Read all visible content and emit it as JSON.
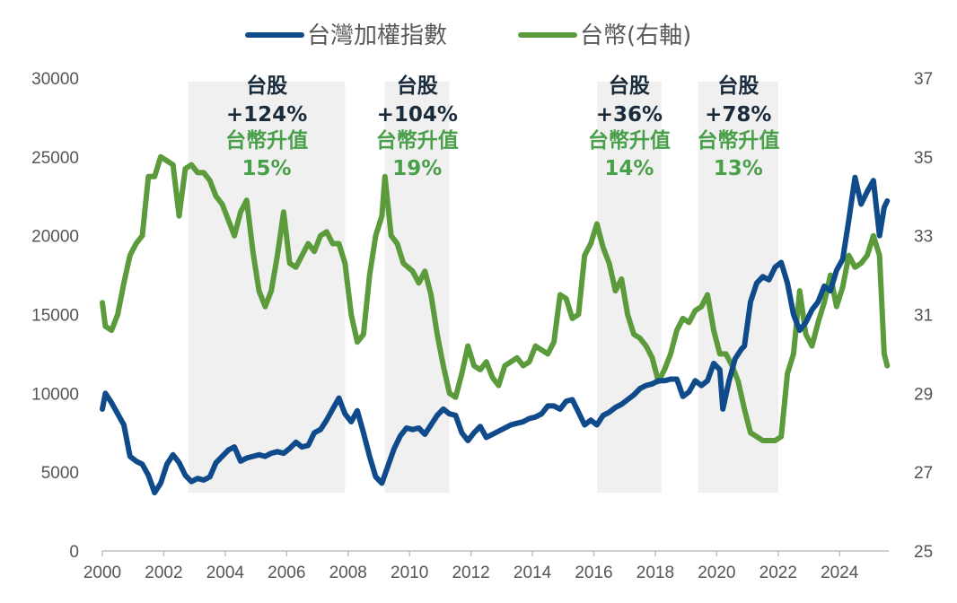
{
  "chart_data": {
    "type": "line",
    "title": "",
    "legend": {
      "placement": "top-center",
      "items": [
        {
          "label": "台灣加權指數",
          "color": "#0f4a8a"
        },
        {
          "label": "台幣(右軸)",
          "color": "#5c9b3c"
        }
      ]
    },
    "x_axis": {
      "ticks": [
        "2000",
        "2002",
        "2004",
        "2006",
        "2008",
        "2010",
        "2012",
        "2014",
        "2016",
        "2018",
        "2020",
        "2022",
        "2024"
      ],
      "range": [
        2000,
        2025.6
      ]
    },
    "y_left": {
      "ticks": [
        "0",
        "5000",
        "10000",
        "15000",
        "20000",
        "25000",
        "30000"
      ],
      "range": [
        0,
        30000
      ]
    },
    "y_right": {
      "ticks": [
        "25",
        "27",
        "29",
        "31",
        "33",
        "35",
        "37"
      ],
      "range": [
        25,
        37
      ]
    },
    "grid": false,
    "shaded_periods": [
      {
        "start": 2002.8,
        "end": 2007.9,
        "label": "台股",
        "stock": "+124%",
        "fx_label": "台幣升值",
        "fx": "15%"
      },
      {
        "start": 2009.2,
        "end": 2011.3,
        "label": "台股",
        "stock": "+104%",
        "fx_label": "台幣升值",
        "fx": "19%"
      },
      {
        "start": 2016.1,
        "end": 2018.2,
        "label": "台股",
        "stock": "+36%",
        "fx_label": "台幣升值",
        "fx": "14%"
      },
      {
        "start": 2019.4,
        "end": 2022.0,
        "label": "台股",
        "stock": "+78%",
        "fx_label": "台幣升值",
        "fx": "13%"
      }
    ],
    "series": [
      {
        "name": "台灣加權指數",
        "axis": "left",
        "color": "#0f4a8a",
        "points": [
          [
            2000.0,
            9000
          ],
          [
            2000.1,
            10000
          ],
          [
            2000.3,
            9400
          ],
          [
            2000.5,
            8700
          ],
          [
            2000.7,
            8000
          ],
          [
            2000.9,
            6000
          ],
          [
            2001.1,
            5700
          ],
          [
            2001.3,
            5500
          ],
          [
            2001.5,
            4800
          ],
          [
            2001.7,
            3700
          ],
          [
            2001.9,
            4300
          ],
          [
            2002.1,
            5500
          ],
          [
            2002.3,
            6100
          ],
          [
            2002.5,
            5600
          ],
          [
            2002.7,
            4800
          ],
          [
            2002.9,
            4400
          ],
          [
            2003.1,
            4600
          ],
          [
            2003.3,
            4500
          ],
          [
            2003.5,
            4700
          ],
          [
            2003.7,
            5600
          ],
          [
            2003.9,
            6000
          ],
          [
            2004.1,
            6400
          ],
          [
            2004.3,
            6600
          ],
          [
            2004.5,
            5700
          ],
          [
            2004.7,
            5900
          ],
          [
            2004.9,
            6000
          ],
          [
            2005.1,
            6100
          ],
          [
            2005.3,
            6000
          ],
          [
            2005.5,
            6200
          ],
          [
            2005.7,
            6300
          ],
          [
            2005.9,
            6200
          ],
          [
            2006.1,
            6500
          ],
          [
            2006.3,
            6900
          ],
          [
            2006.5,
            6600
          ],
          [
            2006.7,
            6700
          ],
          [
            2006.9,
            7500
          ],
          [
            2007.1,
            7700
          ],
          [
            2007.3,
            8300
          ],
          [
            2007.5,
            9000
          ],
          [
            2007.7,
            9700
          ],
          [
            2007.9,
            8700
          ],
          [
            2008.1,
            8200
          ],
          [
            2008.3,
            8900
          ],
          [
            2008.5,
            7500
          ],
          [
            2008.7,
            6000
          ],
          [
            2008.9,
            4700
          ],
          [
            2009.1,
            4300
          ],
          [
            2009.3,
            5400
          ],
          [
            2009.5,
            6500
          ],
          [
            2009.7,
            7300
          ],
          [
            2009.9,
            7800
          ],
          [
            2010.1,
            7700
          ],
          [
            2010.3,
            7800
          ],
          [
            2010.5,
            7400
          ],
          [
            2010.7,
            8000
          ],
          [
            2010.9,
            8600
          ],
          [
            2011.1,
            9000
          ],
          [
            2011.3,
            8700
          ],
          [
            2011.5,
            8600
          ],
          [
            2011.7,
            7500
          ],
          [
            2011.9,
            7000
          ],
          [
            2012.1,
            7500
          ],
          [
            2012.3,
            7900
          ],
          [
            2012.5,
            7200
          ],
          [
            2012.7,
            7400
          ],
          [
            2012.9,
            7600
          ],
          [
            2013.1,
            7800
          ],
          [
            2013.3,
            8000
          ],
          [
            2013.5,
            8100
          ],
          [
            2013.7,
            8200
          ],
          [
            2013.9,
            8400
          ],
          [
            2014.1,
            8500
          ],
          [
            2014.3,
            8700
          ],
          [
            2014.5,
            9200
          ],
          [
            2014.7,
            9200
          ],
          [
            2014.9,
            9000
          ],
          [
            2015.1,
            9500
          ],
          [
            2015.3,
            9600
          ],
          [
            2015.5,
            8800
          ],
          [
            2015.7,
            8000
          ],
          [
            2015.9,
            8300
          ],
          [
            2016.1,
            8000
          ],
          [
            2016.3,
            8600
          ],
          [
            2016.5,
            8800
          ],
          [
            2016.7,
            9100
          ],
          [
            2016.9,
            9300
          ],
          [
            2017.1,
            9600
          ],
          [
            2017.3,
            9900
          ],
          [
            2017.5,
            10300
          ],
          [
            2017.7,
            10500
          ],
          [
            2017.9,
            10600
          ],
          [
            2018.1,
            10800
          ],
          [
            2018.3,
            10800
          ],
          [
            2018.5,
            10900
          ],
          [
            2018.7,
            10900
          ],
          [
            2018.9,
            9800
          ],
          [
            2019.1,
            10100
          ],
          [
            2019.3,
            10800
          ],
          [
            2019.5,
            10500
          ],
          [
            2019.7,
            10800
          ],
          [
            2019.9,
            11900
          ],
          [
            2020.1,
            11500
          ],
          [
            2020.2,
            9000
          ],
          [
            2020.4,
            10800
          ],
          [
            2020.6,
            12200
          ],
          [
            2020.8,
            12800
          ],
          [
            2020.9,
            13000
          ],
          [
            2021.1,
            15800
          ],
          [
            2021.3,
            17000
          ],
          [
            2021.5,
            17400
          ],
          [
            2021.7,
            17200
          ],
          [
            2021.9,
            18000
          ],
          [
            2022.1,
            18300
          ],
          [
            2022.3,
            17000
          ],
          [
            2022.5,
            15000
          ],
          [
            2022.7,
            14000
          ],
          [
            2022.9,
            14500
          ],
          [
            2023.1,
            15300
          ],
          [
            2023.3,
            15800
          ],
          [
            2023.5,
            16800
          ],
          [
            2023.7,
            16500
          ],
          [
            2023.9,
            17800
          ],
          [
            2024.1,
            18500
          ],
          [
            2024.3,
            21000
          ],
          [
            2024.5,
            23700
          ],
          [
            2024.7,
            22000
          ],
          [
            2024.9,
            22800
          ],
          [
            2025.1,
            23500
          ],
          [
            2025.3,
            20000
          ],
          [
            2025.45,
            21800
          ],
          [
            2025.55,
            22200
          ]
        ]
      },
      {
        "name": "台幣(右軸)",
        "axis": "right",
        "color": "#5c9b3c",
        "points": [
          [
            2000.0,
            31.3
          ],
          [
            2000.1,
            30.7
          ],
          [
            2000.3,
            30.6
          ],
          [
            2000.5,
            31.0
          ],
          [
            2000.7,
            31.8
          ],
          [
            2000.9,
            32.5
          ],
          [
            2001.1,
            32.8
          ],
          [
            2001.3,
            33.0
          ],
          [
            2001.5,
            34.5
          ],
          [
            2001.7,
            34.5
          ],
          [
            2001.9,
            35.0
          ],
          [
            2002.1,
            34.9
          ],
          [
            2002.3,
            34.8
          ],
          [
            2002.5,
            33.5
          ],
          [
            2002.7,
            34.7
          ],
          [
            2002.9,
            34.8
          ],
          [
            2003.1,
            34.6
          ],
          [
            2003.3,
            34.6
          ],
          [
            2003.5,
            34.4
          ],
          [
            2003.7,
            34.0
          ],
          [
            2003.9,
            33.8
          ],
          [
            2004.1,
            33.4
          ],
          [
            2004.3,
            33.0
          ],
          [
            2004.5,
            33.6
          ],
          [
            2004.7,
            33.9
          ],
          [
            2004.9,
            32.6
          ],
          [
            2005.1,
            31.6
          ],
          [
            2005.3,
            31.2
          ],
          [
            2005.5,
            31.6
          ],
          [
            2005.7,
            32.5
          ],
          [
            2005.9,
            33.6
          ],
          [
            2006.1,
            32.3
          ],
          [
            2006.3,
            32.2
          ],
          [
            2006.5,
            32.5
          ],
          [
            2006.7,
            32.8
          ],
          [
            2006.9,
            32.6
          ],
          [
            2007.1,
            33.0
          ],
          [
            2007.3,
            33.1
          ],
          [
            2007.5,
            32.8
          ],
          [
            2007.7,
            32.8
          ],
          [
            2007.9,
            32.3
          ],
          [
            2008.1,
            31.0
          ],
          [
            2008.3,
            30.3
          ],
          [
            2008.5,
            30.5
          ],
          [
            2008.7,
            32.0
          ],
          [
            2008.9,
            33.0
          ],
          [
            2009.1,
            33.5
          ],
          [
            2009.2,
            34.5
          ],
          [
            2009.4,
            33.0
          ],
          [
            2009.6,
            32.8
          ],
          [
            2009.8,
            32.3
          ],
          [
            2010.1,
            32.1
          ],
          [
            2010.3,
            31.8
          ],
          [
            2010.5,
            32.1
          ],
          [
            2010.7,
            31.5
          ],
          [
            2010.9,
            30.5
          ],
          [
            2011.1,
            29.7
          ],
          [
            2011.3,
            29.0
          ],
          [
            2011.5,
            28.9
          ],
          [
            2011.7,
            29.5
          ],
          [
            2011.9,
            30.2
          ],
          [
            2012.1,
            29.7
          ],
          [
            2012.3,
            29.6
          ],
          [
            2012.5,
            29.8
          ],
          [
            2012.7,
            29.4
          ],
          [
            2012.9,
            29.2
          ],
          [
            2013.1,
            29.7
          ],
          [
            2013.3,
            29.8
          ],
          [
            2013.5,
            29.9
          ],
          [
            2013.7,
            29.7
          ],
          [
            2013.9,
            29.8
          ],
          [
            2014.1,
            30.2
          ],
          [
            2014.3,
            30.1
          ],
          [
            2014.5,
            30.0
          ],
          [
            2014.7,
            30.3
          ],
          [
            2014.9,
            31.5
          ],
          [
            2015.1,
            31.4
          ],
          [
            2015.3,
            30.9
          ],
          [
            2015.5,
            31.0
          ],
          [
            2015.7,
            32.5
          ],
          [
            2015.9,
            32.8
          ],
          [
            2016.1,
            33.3
          ],
          [
            2016.3,
            32.7
          ],
          [
            2016.5,
            32.3
          ],
          [
            2016.7,
            31.6
          ],
          [
            2016.9,
            31.9
          ],
          [
            2017.1,
            31.0
          ],
          [
            2017.3,
            30.5
          ],
          [
            2017.5,
            30.4
          ],
          [
            2017.7,
            30.2
          ],
          [
            2017.9,
            29.9
          ],
          [
            2018.1,
            29.3
          ],
          [
            2018.3,
            29.6
          ],
          [
            2018.5,
            30.0
          ],
          [
            2018.7,
            30.6
          ],
          [
            2018.9,
            30.9
          ],
          [
            2019.1,
            30.8
          ],
          [
            2019.3,
            31.1
          ],
          [
            2019.5,
            31.2
          ],
          [
            2019.7,
            31.5
          ],
          [
            2019.9,
            30.6
          ],
          [
            2020.1,
            30.0
          ],
          [
            2020.3,
            30.0
          ],
          [
            2020.5,
            29.7
          ],
          [
            2020.7,
            29.3
          ],
          [
            2020.9,
            28.6
          ],
          [
            2021.1,
            28.0
          ],
          [
            2021.3,
            27.9
          ],
          [
            2021.5,
            27.8
          ],
          [
            2021.7,
            27.8
          ],
          [
            2021.9,
            27.8
          ],
          [
            2022.1,
            27.9
          ],
          [
            2022.3,
            29.5
          ],
          [
            2022.5,
            30.0
          ],
          [
            2022.7,
            31.6
          ],
          [
            2022.9,
            30.5
          ],
          [
            2023.1,
            30.2
          ],
          [
            2023.3,
            30.8
          ],
          [
            2023.5,
            31.3
          ],
          [
            2023.7,
            32.0
          ],
          [
            2023.9,
            31.2
          ],
          [
            2024.1,
            31.7
          ],
          [
            2024.3,
            32.5
          ],
          [
            2024.5,
            32.2
          ],
          [
            2024.7,
            32.3
          ],
          [
            2024.9,
            32.5
          ],
          [
            2025.1,
            33.0
          ],
          [
            2025.3,
            32.5
          ],
          [
            2025.45,
            30.0
          ],
          [
            2025.55,
            29.7
          ]
        ]
      }
    ]
  }
}
